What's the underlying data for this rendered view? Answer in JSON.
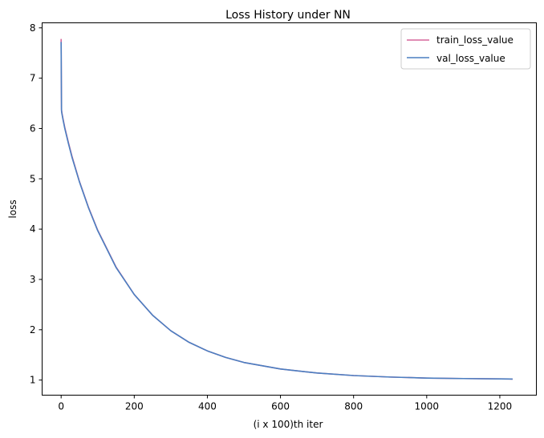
{
  "chart_data": {
    "type": "line",
    "title": "Loss History under NN",
    "xlabel": "(i x 100)th iter",
    "ylabel": "loss",
    "xlim": [
      -52,
      1300
    ],
    "ylim": [
      0.7,
      8.1
    ],
    "xticks": [
      0,
      200,
      400,
      600,
      800,
      1000,
      1200
    ],
    "yticks": [
      1,
      2,
      3,
      4,
      5,
      6,
      7,
      8
    ],
    "grid": false,
    "legend_position": "top-right",
    "series": [
      {
        "name": "train_loss_value",
        "color": "#d6669b",
        "x": [
          0,
          1,
          2,
          5,
          10,
          20,
          30,
          50,
          75,
          100,
          150,
          200,
          250,
          300,
          350,
          400,
          450,
          500,
          600,
          700,
          800,
          900,
          1000,
          1100,
          1235
        ],
        "y": [
          7.78,
          6.38,
          6.32,
          6.2,
          6.02,
          5.72,
          5.44,
          4.95,
          4.43,
          3.98,
          3.25,
          2.7,
          2.29,
          1.98,
          1.75,
          1.58,
          1.45,
          1.35,
          1.22,
          1.14,
          1.09,
          1.06,
          1.04,
          1.03,
          1.02
        ]
      },
      {
        "name": "val_loss_value",
        "color": "#4a7fc1",
        "x": [
          0,
          1,
          2,
          5,
          10,
          20,
          30,
          50,
          75,
          100,
          150,
          200,
          250,
          300,
          350,
          400,
          450,
          500,
          600,
          700,
          800,
          900,
          1000,
          1100,
          1235
        ],
        "y": [
          7.72,
          6.35,
          6.3,
          6.18,
          6.0,
          5.7,
          5.42,
          4.94,
          4.42,
          3.97,
          3.24,
          2.7,
          2.29,
          1.98,
          1.75,
          1.58,
          1.45,
          1.35,
          1.22,
          1.14,
          1.09,
          1.06,
          1.04,
          1.03,
          1.02
        ]
      }
    ]
  }
}
